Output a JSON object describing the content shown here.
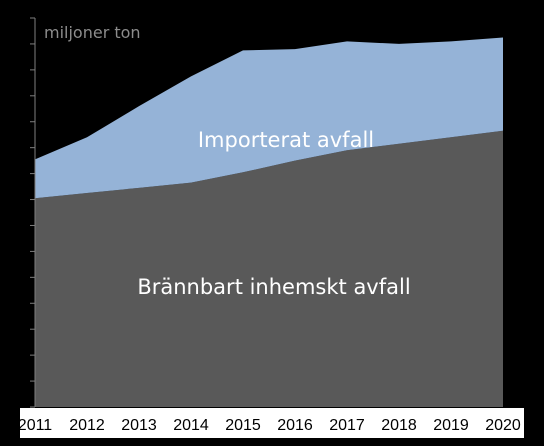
{
  "chart_data": {
    "type": "area",
    "stacked": true,
    "unit_label": "miljoner ton",
    "x": [
      2011,
      2012,
      2013,
      2014,
      2015,
      2016,
      2017,
      2018,
      2019,
      2020
    ],
    "ylim": [
      0,
      3.0
    ],
    "grid": false,
    "series": [
      {
        "name": "Brännbart inhemskt avfall",
        "color": "#595959",
        "values": [
          1.61,
          1.65,
          1.69,
          1.73,
          1.81,
          1.9,
          1.98,
          2.03,
          2.08,
          2.13
        ]
      },
      {
        "name": "Importerat avfall",
        "color": "#95b3d7",
        "values": [
          0.3,
          0.43,
          0.63,
          0.82,
          0.94,
          0.86,
          0.84,
          0.77,
          0.74,
          0.72
        ]
      }
    ]
  }
}
